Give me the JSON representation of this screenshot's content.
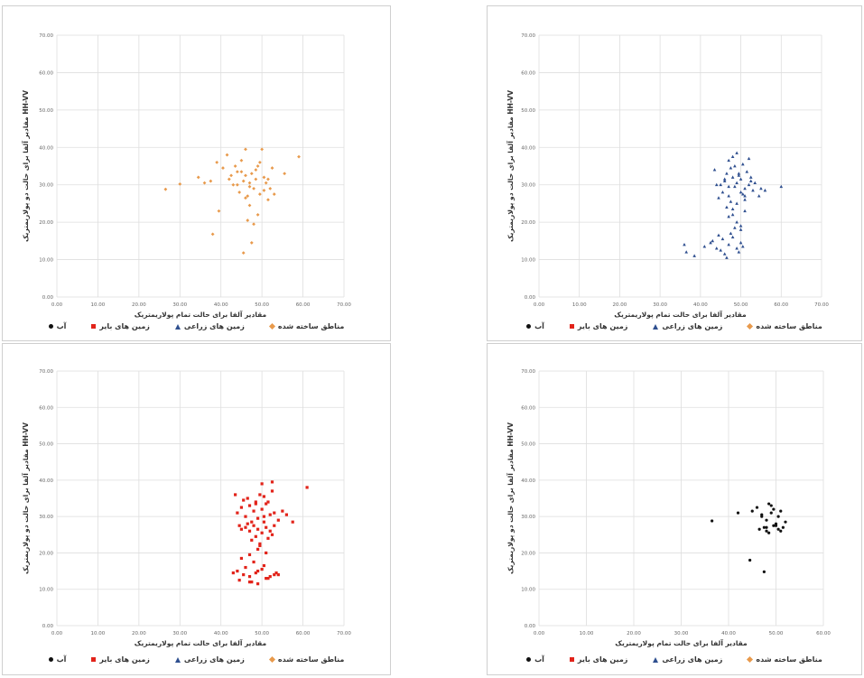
{
  "chart_data": [
    {
      "type": "scatter",
      "xlabel": "مقادیر آلفا برای حالت تمام پولاریمتریک",
      "ylabel": "مقادیر آلفا برای حالت دو پولاریمتریک HH-VV",
      "xlim": [
        0,
        70
      ],
      "ylim": [
        0,
        70
      ],
      "xticks": [
        "0.00",
        "10.00",
        "20.00",
        "30.00",
        "40.00",
        "50.00",
        "60.00",
        "70.00"
      ],
      "yticks": [
        "0.00",
        "10.00",
        "20.00",
        "30.00",
        "40.00",
        "50.00",
        "60.00",
        "70.00"
      ],
      "grid": true,
      "legend_position": "bottom",
      "series": [
        {
          "name": "مناطق ساخته شده",
          "color": "#e89a4c",
          "marker": "diamond",
          "x": [
            26.5,
            30.0,
            34.5,
            36.0,
            37.5,
            39.0,
            40.5,
            41.5,
            42.0,
            43.0,
            44.0,
            44.5,
            45.0,
            45.5,
            46.0,
            46.0,
            46.5,
            47.0,
            47.5,
            48.0,
            48.5,
            49.0,
            49.5,
            50.0,
            50.5,
            51.0,
            51.5,
            52.0,
            53.0,
            55.5,
            59.0,
            38.0,
            39.5,
            46.5,
            47.5,
            48.0,
            45.5,
            49.0,
            43.5,
            46.0,
            47.0,
            48.5,
            44.0,
            50.5,
            51.5,
            45.0,
            47.0,
            49.5,
            42.5,
            52.5
          ],
          "y": [
            28.8,
            30.2,
            32.0,
            30.5,
            31.0,
            36.0,
            34.5,
            38.0,
            31.5,
            30.0,
            33.5,
            28.0,
            36.5,
            31.0,
            39.5,
            32.5,
            27.0,
            30.5,
            33.0,
            29.0,
            31.5,
            35.0,
            27.5,
            39.5,
            32.0,
            30.5,
            26.0,
            29.0,
            27.5,
            33.0,
            37.5,
            16.8,
            23.0,
            20.5,
            14.5,
            19.5,
            11.8,
            22.0,
            35.0,
            26.5,
            29.5,
            34.0,
            30.0,
            28.5,
            31.5,
            33.5,
            24.5,
            36.0,
            32.5,
            34.5
          ]
        },
        {
          "name": "زمین های زراعی",
          "color": "#2f4f8f",
          "marker": "triangle",
          "x": [],
          "y": []
        },
        {
          "name": "زمین های بایر",
          "color": "#e2231a",
          "marker": "square",
          "x": [],
          "y": []
        },
        {
          "name": "آب",
          "color": "#111111",
          "marker": "circle",
          "x": [],
          "y": []
        }
      ]
    },
    {
      "type": "scatter",
      "xlabel": "مقادیر آلفا برای حالت تمام پولاریمتریک",
      "ylabel": "مقادیر آلفا برای حالت دو پولاریمتریک HH-VV",
      "xlim": [
        0,
        70
      ],
      "ylim": [
        0,
        70
      ],
      "xticks": [
        "0.00",
        "10.00",
        "20.00",
        "30.00",
        "40.00",
        "50.00",
        "60.00",
        "70.00"
      ],
      "yticks": [
        "0.00",
        "10.00",
        "20.00",
        "30.00",
        "40.00",
        "50.00",
        "60.00",
        "70.00"
      ],
      "grid": true,
      "legend_position": "bottom",
      "series": [
        {
          "name": "مناطق ساخته شده",
          "color": "#e89a4c",
          "marker": "diamond",
          "x": [],
          "y": []
        },
        {
          "name": "زمین های زراعی",
          "color": "#2f4f8f",
          "marker": "triangle",
          "x": [
            45.0,
            46.0,
            47.0,
            48.0,
            49.0,
            50.0,
            51.0,
            52.0,
            53.0,
            46.5,
            47.5,
            48.5,
            49.5,
            50.5,
            51.5,
            52.5,
            45.5,
            44.5,
            53.5,
            54.5,
            47.0,
            48.0,
            49.0,
            50.0,
            51.0,
            46.0,
            48.5,
            49.5,
            50.5,
            47.5,
            52.0,
            44.0,
            55.0,
            46.5,
            51.0,
            48.0,
            49.0,
            50.0,
            47.0,
            52.5,
            43.5,
            56.0,
            60.0,
            36.0,
            36.5,
            38.5,
            41.0,
            42.5,
            43.0,
            44.0,
            45.0,
            46.0,
            47.0,
            48.0,
            49.0,
            50.0,
            45.5,
            47.5,
            49.5,
            48.5,
            46.5,
            44.5,
            50.5,
            49.0,
            48.0,
            47.0,
            50.0,
            51.0
          ],
          "y": [
            30.0,
            31.0,
            29.5,
            32.0,
            30.5,
            31.5,
            29.0,
            30.0,
            28.5,
            33.0,
            34.5,
            35.0,
            32.5,
            27.5,
            33.5,
            31.0,
            28.0,
            26.5,
            30.5,
            27.0,
            36.5,
            37.5,
            38.5,
            28.0,
            26.0,
            31.5,
            29.5,
            33.0,
            35.5,
            25.5,
            37.0,
            30.0,
            29.0,
            24.0,
            23.0,
            22.0,
            20.0,
            18.0,
            27.0,
            32.0,
            34.0,
            28.5,
            29.5,
            14.0,
            12.0,
            11.0,
            13.5,
            14.5,
            15.0,
            13.0,
            12.5,
            11.5,
            14.0,
            16.0,
            13.0,
            14.5,
            15.5,
            17.0,
            12.0,
            18.5,
            10.5,
            16.5,
            13.5,
            25.0,
            23.5,
            21.5,
            19.0,
            27.0
          ]
        },
        {
          "name": "زمین های بایر",
          "color": "#e2231a",
          "marker": "square",
          "x": [],
          "y": []
        },
        {
          "name": "آب",
          "color": "#111111",
          "marker": "circle",
          "x": [],
          "y": []
        }
      ]
    },
    {
      "type": "scatter",
      "xlabel": "مقادیر آلفا برای حالت تمام پولاریمتریک",
      "ylabel": "مقادیر آلفا برای حالت دو پولاریمتریک HH-VV",
      "xlim": [
        0,
        70
      ],
      "ylim": [
        0,
        70
      ],
      "xticks": [
        "0.00",
        "10.00",
        "20.00",
        "30.00",
        "40.00",
        "50.00",
        "60.00",
        "70.00"
      ],
      "yticks": [
        "0.00",
        "10.00",
        "20.00",
        "30.00",
        "40.00",
        "50.00",
        "60.00",
        "70.00"
      ],
      "grid": true,
      "legend_position": "bottom",
      "series": [
        {
          "name": "مناطق ساخته شده",
          "color": "#e89a4c",
          "marker": "diamond",
          "x": [],
          "y": []
        },
        {
          "name": "زمین های زراعی",
          "color": "#2f4f8f",
          "marker": "triangle",
          "x": [],
          "y": []
        },
        {
          "name": "زمین های بایر",
          "color": "#e2231a",
          "marker": "square",
          "x": [
            44.0,
            45.0,
            46.0,
            47.0,
            48.0,
            49.0,
            50.0,
            51.0,
            52.0,
            53.0,
            54.0,
            45.5,
            46.5,
            47.5,
            48.5,
            49.5,
            50.5,
            51.5,
            52.5,
            44.5,
            55.0,
            56.0,
            57.5,
            61.0,
            43.5,
            45.0,
            46.0,
            47.0,
            48.0,
            49.0,
            50.0,
            51.0,
            52.0,
            53.0,
            46.5,
            48.5,
            50.5,
            52.5,
            47.5,
            49.5,
            51.5,
            44.0,
            45.5,
            47.0,
            48.5,
            50.0,
            51.5,
            53.0,
            44.5,
            46.0,
            47.5,
            49.0,
            50.5,
            52.0,
            53.5,
            45.0,
            47.0,
            49.0,
            51.0,
            48.0,
            49.5,
            50.0,
            52.5,
            47.0,
            49.0,
            51.0,
            54.0,
            43.0,
            48.5,
            50.5
          ],
          "y": [
            31.0,
            32.5,
            30.0,
            33.0,
            31.5,
            29.5,
            32.0,
            33.5,
            30.5,
            31.0,
            29.0,
            34.5,
            35.0,
            28.5,
            33.5,
            36.0,
            30.0,
            34.0,
            37.0,
            27.5,
            31.5,
            30.5,
            28.5,
            38.0,
            36.0,
            26.5,
            27.0,
            26.0,
            27.5,
            26.5,
            25.5,
            27.0,
            26.0,
            27.5,
            28.0,
            24.5,
            28.5,
            25.0,
            23.5,
            22.5,
            24.0,
            15.0,
            14.0,
            13.5,
            14.5,
            15.5,
            13.0,
            14.0,
            12.5,
            16.0,
            12.0,
            15.0,
            16.5,
            13.5,
            14.5,
            18.5,
            19.5,
            21.0,
            20.0,
            17.5,
            22.0,
            39.0,
            39.5,
            12.0,
            11.5,
            13.0,
            14.0,
            14.5,
            34.0,
            35.5
          ]
        },
        {
          "name": "آب",
          "color": "#111111",
          "marker": "circle",
          "x": [],
          "y": []
        }
      ]
    },
    {
      "type": "scatter",
      "xlabel": "مقادیر آلفا برای حالت تمام پولاریمتریک",
      "ylabel": "مقادیر آلفا برای حالت دو پولاریمتریک HH-VV",
      "xlim": [
        0,
        60
      ],
      "ylim": [
        0,
        70
      ],
      "xticks": [
        "0.00",
        "10.00",
        "20.00",
        "30.00",
        "40.00",
        "50.00",
        "60.00"
      ],
      "yticks": [
        "0.00",
        "10.00",
        "20.00",
        "30.00",
        "40.00",
        "50.00",
        "60.00",
        "70.00"
      ],
      "grid": true,
      "legend_position": "bottom",
      "series": [
        {
          "name": "مناطق ساخته شده",
          "color": "#e89a4c",
          "marker": "diamond",
          "x": [],
          "y": []
        },
        {
          "name": "زمین های زراعی",
          "color": "#2f4f8f",
          "marker": "triangle",
          "x": [],
          "y": []
        },
        {
          "name": "زمین های بایر",
          "color": "#e2231a",
          "marker": "square",
          "x": [],
          "y": []
        },
        {
          "name": "آب",
          "color": "#111111",
          "marker": "circle",
          "x": [
            36.5,
            42.0,
            44.5,
            46.0,
            47.0,
            47.5,
            48.0,
            48.5,
            49.0,
            49.5,
            50.0,
            50.5,
            51.0,
            51.5,
            52.0,
            46.5,
            48.0,
            49.5,
            51.0,
            47.0,
            48.5,
            50.0,
            45.0,
            47.5,
            49.0,
            50.5,
            48.0
          ],
          "y": [
            28.8,
            31.0,
            18.0,
            32.5,
            30.5,
            27.0,
            26.0,
            33.5,
            31.0,
            27.5,
            28.0,
            26.5,
            31.5,
            27.0,
            28.5,
            26.5,
            29.0,
            32.0,
            26.0,
            30.0,
            25.5,
            27.5,
            31.5,
            14.8,
            33.0,
            30.0,
            27.0
          ]
        }
      ]
    }
  ]
}
